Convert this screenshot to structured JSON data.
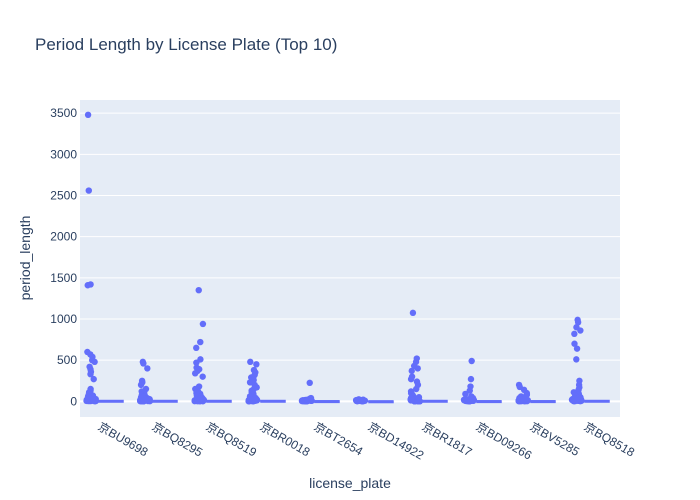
{
  "chart_data": {
    "type": "box",
    "title": "Period Length by License Plate (Top 10)",
    "xlabel": "license_plate",
    "ylabel": "period_length",
    "ylim": [
      -190,
      3660
    ],
    "yticks": [
      0,
      500,
      1000,
      1500,
      2000,
      2500,
      3000,
      3500
    ],
    "categories": [
      "京BU9698",
      "京BQ8295",
      "京BQ8519",
      "京BR0018",
      "京BT2654",
      "京BD14922",
      "京BR1817",
      "京BD09266",
      "京BV5285",
      "京BQ8518"
    ],
    "colors": {
      "points": "#636efa",
      "box": "#636efa",
      "plot_bg": "#e5ecf6",
      "grid": "#ffffff",
      "text": "#2a3f5f"
    },
    "series": [
      {
        "category": "京BU9698",
        "box": [
          0,
          2,
          5,
          10,
          22
        ],
        "outliers": [
          3480,
          2560,
          1420,
          1410,
          600,
          570,
          540,
          500,
          480,
          420,
          390,
          360,
          330,
          270,
          150,
          130,
          110,
          90,
          70,
          60,
          50,
          40
        ]
      },
      {
        "category": "京BQ8295",
        "box": [
          0,
          2,
          5,
          10,
          22
        ],
        "outliers": [
          480,
          460,
          400,
          250,
          230,
          200,
          150,
          120,
          100,
          80,
          70,
          60,
          50,
          40,
          35,
          30
        ]
      },
      {
        "category": "京BQ8519",
        "box": [
          0,
          2,
          5,
          10,
          22
        ],
        "outliers": [
          1350,
          940,
          720,
          650,
          510,
          470,
          410,
          390,
          370,
          340,
          300,
          180,
          150,
          120,
          100,
          90,
          70,
          60,
          50,
          40,
          30
        ]
      },
      {
        "category": "京BR0018",
        "box": [
          0,
          2,
          5,
          10,
          22
        ],
        "outliers": [
          480,
          450,
          380,
          350,
          320,
          290,
          260,
          230,
          200,
          170,
          150,
          130,
          110,
          90,
          70,
          60,
          50,
          40,
          30
        ]
      },
      {
        "category": "京BT2654",
        "box": [
          0,
          1,
          3,
          6,
          12
        ],
        "outliers": [
          225,
          40,
          30,
          25,
          20
        ]
      },
      {
        "category": "京BD14922",
        "box": [
          0,
          1,
          2,
          4,
          8
        ],
        "outliers": [
          25,
          20,
          15
        ]
      },
      {
        "category": "京BR1817",
        "box": [
          0,
          2,
          5,
          10,
          22
        ],
        "outliers": [
          1075,
          520,
          480,
          430,
          400,
          370,
          300,
          270,
          240,
          200,
          150,
          120,
          100,
          80,
          60,
          50,
          40,
          30
        ]
      },
      {
        "category": "京BD09266",
        "box": [
          0,
          1,
          3,
          6,
          12
        ],
        "outliers": [
          490,
          270,
          180,
          130,
          90,
          60,
          40,
          30,
          20
        ]
      },
      {
        "category": "京BV5285",
        "box": [
          0,
          1,
          3,
          6,
          12
        ],
        "outliers": [
          200,
          175,
          140,
          100,
          80,
          60,
          40,
          30,
          20
        ]
      },
      {
        "category": "京BQ8518",
        "box": [
          0,
          2,
          5,
          10,
          22
        ],
        "outliers": [
          990,
          960,
          900,
          860,
          820,
          700,
          640,
          510,
          250,
          200,
          170,
          140,
          110,
          90,
          70,
          50,
          40,
          30
        ]
      }
    ]
  }
}
